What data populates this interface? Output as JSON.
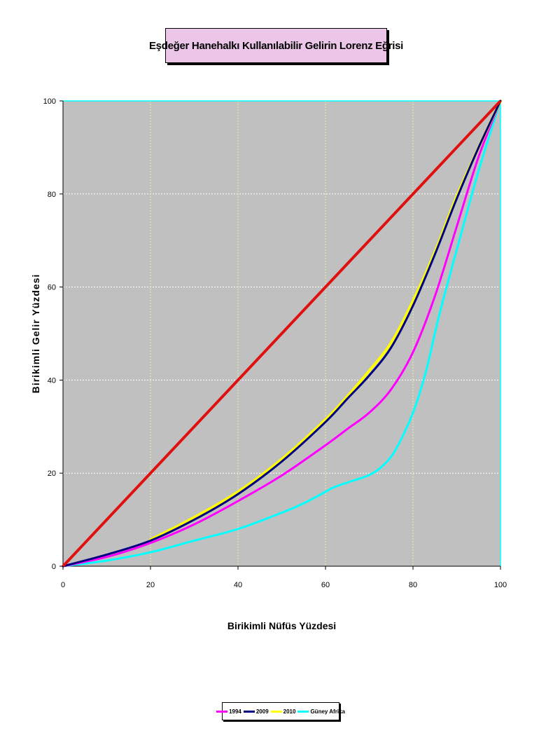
{
  "title": "Eşdeğer Hanehalkı Kullanılabilir Gelirin Lorenz Eğrisi",
  "chart_data": {
    "type": "line",
    "title": "Eşdeğer Hanehalkı Kullanılabilir Gelirin Lorenz Eğrisi",
    "xlabel": "Birikimli Nüfüs Yüzdesi",
    "ylabel": "Birikimli Gelir Yüzdesi",
    "xlim": [
      0,
      100
    ],
    "ylim": [
      0,
      100
    ],
    "xticks": [
      "0",
      "20",
      "40",
      "60",
      "80",
      "100"
    ],
    "yticks": [
      "0",
      "20",
      "40",
      "60",
      "80",
      "100"
    ],
    "grid": true,
    "legend_position": "bottom",
    "plot_background": "#c0c0c0",
    "equality_line": {
      "color": "#e01010",
      "x": [
        0,
        100
      ],
      "y": [
        0,
        100
      ]
    },
    "series": [
      {
        "name": "1994",
        "color": "#ff00ff",
        "x": [
          0,
          10,
          20,
          30,
          40,
          50,
          60,
          65,
          70,
          75,
          80,
          85,
          90,
          95,
          100
        ],
        "y": [
          0,
          2,
          5,
          9,
          14,
          19.5,
          26,
          29.5,
          33,
          38,
          46,
          58,
          73,
          88,
          100
        ]
      },
      {
        "name": "2009",
        "color": "#000080",
        "x": [
          0,
          10,
          20,
          30,
          40,
          50,
          60,
          65,
          70,
          75,
          80,
          85,
          90,
          95,
          100
        ],
        "y": [
          0,
          2.5,
          5.5,
          10,
          15.5,
          22.5,
          31,
          36,
          41,
          47,
          56,
          67,
          79,
          90,
          100
        ]
      },
      {
        "name": "2010",
        "color": "#ffff00",
        "x": [
          20,
          30,
          40,
          50,
          60,
          65,
          70,
          75,
          80,
          85,
          90,
          95,
          100
        ],
        "y": [
          5.7,
          10.5,
          16,
          23,
          31.5,
          36.5,
          42,
          48,
          57,
          67.5,
          79.5,
          90,
          100
        ]
      },
      {
        "name": "Güney Afrika",
        "color": "#00ffff",
        "x": [
          0,
          10,
          20,
          30,
          40,
          50,
          55,
          60,
          62,
          66,
          70,
          73,
          76,
          80,
          83,
          86,
          90,
          95,
          100
        ],
        "y": [
          0,
          1.2,
          3,
          5.5,
          8,
          11.5,
          13.5,
          16,
          17,
          18.3,
          19.6,
          21.5,
          25,
          33,
          42,
          54,
          68,
          85,
          100
        ]
      }
    ]
  }
}
